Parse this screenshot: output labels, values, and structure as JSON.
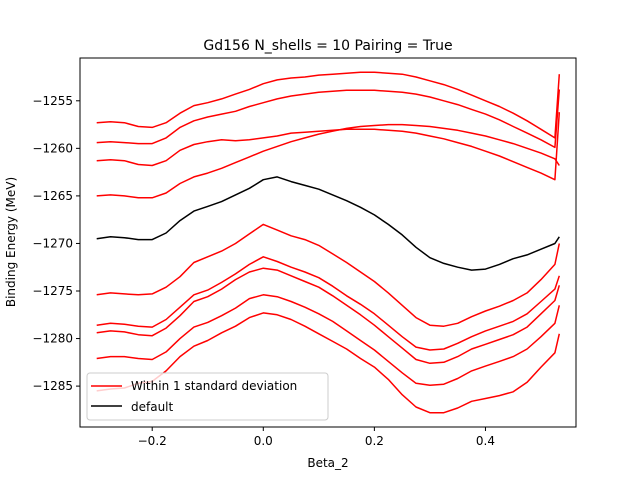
{
  "chart_data": {
    "type": "line",
    "title": "Gd156 N_shells = 10 Pairing = True",
    "xlabel": "Beta_2",
    "ylabel": "Binding Energy (MeV)",
    "xlim": [
      -0.33,
      0.563
    ],
    "ylim": [
      -1289.3,
      -1250.5
    ],
    "xticks": [
      -0.2,
      0.0,
      0.2,
      0.4
    ],
    "xtick_labels": [
      "−0.2",
      "0.0",
      "0.2",
      "0.4"
    ],
    "yticks": [
      -1255,
      -1260,
      -1265,
      -1270,
      -1275,
      -1280,
      -1285
    ],
    "ytick_labels": [
      "−1255",
      "−1260",
      "−1265",
      "−1270",
      "−1275",
      "−1280",
      "−1285"
    ],
    "grid": false,
    "legend_position": "lower-left",
    "legend": [
      {
        "label": "Within 1 standard deviation",
        "color": "#ff0000"
      },
      {
        "label": "default",
        "color": "#000000"
      }
    ],
    "x": [
      -0.3,
      -0.275,
      -0.25,
      -0.225,
      -0.2,
      -0.175,
      -0.15,
      -0.125,
      -0.1,
      -0.075,
      -0.05,
      -0.025,
      0.0,
      0.025,
      0.05,
      0.075,
      0.1,
      0.125,
      0.15,
      0.175,
      0.2,
      0.225,
      0.25,
      0.275,
      0.3,
      0.325,
      0.35,
      0.375,
      0.4,
      0.425,
      0.45,
      0.475,
      0.5,
      0.525,
      0.533
    ],
    "series": [
      {
        "color": "#ff0000",
        "values": [
          -1257.3,
          -1257.2,
          -1257.3,
          -1257.7,
          -1257.8,
          -1257.3,
          -1256.3,
          -1255.5,
          -1255.2,
          -1254.8,
          -1254.3,
          -1253.8,
          -1253.2,
          -1252.8,
          -1252.6,
          -1252.5,
          -1252.3,
          -1252.2,
          -1252.1,
          -1252.0,
          -1252.0,
          -1252.1,
          -1252.2,
          -1252.5,
          -1252.9,
          -1253.3,
          -1253.8,
          -1254.4,
          -1255.0,
          -1255.6,
          -1256.3,
          -1257.1,
          -1258.0,
          -1258.9,
          -1252.2
        ]
      },
      {
        "color": "#ff0000",
        "values": [
          -1259.4,
          -1259.3,
          -1259.4,
          -1259.5,
          -1259.5,
          -1258.9,
          -1257.8,
          -1257.1,
          -1256.7,
          -1256.4,
          -1256.1,
          -1255.6,
          -1255.2,
          -1254.8,
          -1254.5,
          -1254.3,
          -1254.1,
          -1254.0,
          -1253.9,
          -1253.9,
          -1253.9,
          -1254.0,
          -1254.1,
          -1254.3,
          -1254.6,
          -1255.0,
          -1255.4,
          -1255.9,
          -1256.4,
          -1257.0,
          -1257.7,
          -1258.4,
          -1259.1,
          -1259.9,
          -1253.8
        ]
      },
      {
        "color": "#ff0000",
        "values": [
          -1261.3,
          -1261.2,
          -1261.3,
          -1261.7,
          -1261.8,
          -1261.3,
          -1260.2,
          -1259.6,
          -1259.3,
          -1259.1,
          -1259.2,
          -1259.1,
          -1258.9,
          -1258.7,
          -1258.4,
          -1258.3,
          -1258.2,
          -1258.1,
          -1258.0,
          -1258.0,
          -1258.0,
          -1258.1,
          -1258.2,
          -1258.4,
          -1258.7,
          -1259.0,
          -1259.4,
          -1259.8,
          -1260.3,
          -1260.8,
          -1261.4,
          -1262.0,
          -1262.6,
          -1263.3,
          -1256.2
        ]
      },
      {
        "color": "#ff0000",
        "values": [
          -1265.0,
          -1264.9,
          -1265.0,
          -1265.2,
          -1265.2,
          -1264.7,
          -1263.7,
          -1263.0,
          -1262.6,
          -1262.1,
          -1261.5,
          -1260.9,
          -1260.3,
          -1259.8,
          -1259.3,
          -1258.9,
          -1258.5,
          -1258.2,
          -1257.9,
          -1257.7,
          -1257.6,
          -1257.5,
          -1257.5,
          -1257.6,
          -1257.7,
          -1257.9,
          -1258.1,
          -1258.4,
          -1258.7,
          -1259.1,
          -1259.5,
          -1260.0,
          -1260.5,
          -1261.1,
          -1261.8
        ]
      },
      {
        "color": "#000000",
        "values": [
          -1269.5,
          -1269.3,
          -1269.4,
          -1269.6,
          -1269.6,
          -1268.9,
          -1267.6,
          -1266.6,
          -1266.1,
          -1265.6,
          -1264.9,
          -1264.2,
          -1263.3,
          -1263.0,
          -1263.5,
          -1263.9,
          -1264.3,
          -1264.9,
          -1265.5,
          -1266.2,
          -1267.0,
          -1268.0,
          -1269.1,
          -1270.4,
          -1271.5,
          -1272.1,
          -1272.5,
          -1272.8,
          -1272.7,
          -1272.2,
          -1271.6,
          -1271.2,
          -1270.6,
          -1270.0,
          -1269.3
        ]
      },
      {
        "color": "#ff0000",
        "values": [
          -1275.4,
          -1275.2,
          -1275.3,
          -1275.4,
          -1275.3,
          -1274.6,
          -1273.5,
          -1272.0,
          -1271.4,
          -1270.8,
          -1270.0,
          -1269.0,
          -1268.0,
          -1268.6,
          -1269.2,
          -1269.6,
          -1270.2,
          -1271.1,
          -1272.0,
          -1273.0,
          -1274.0,
          -1275.2,
          -1276.5,
          -1277.8,
          -1278.6,
          -1278.7,
          -1278.4,
          -1277.7,
          -1277.1,
          -1276.6,
          -1276.0,
          -1275.2,
          -1273.8,
          -1272.2,
          -1270.0
        ]
      },
      {
        "color": "#ff0000",
        "values": [
          -1278.6,
          -1278.4,
          -1278.5,
          -1278.7,
          -1278.8,
          -1278.0,
          -1276.7,
          -1275.4,
          -1274.9,
          -1274.1,
          -1273.2,
          -1272.2,
          -1271.4,
          -1271.9,
          -1272.5,
          -1273.0,
          -1273.6,
          -1274.5,
          -1275.5,
          -1276.4,
          -1277.4,
          -1278.6,
          -1279.8,
          -1280.9,
          -1281.2,
          -1281.1,
          -1280.5,
          -1279.8,
          -1279.2,
          -1278.7,
          -1278.2,
          -1277.4,
          -1276.1,
          -1274.8,
          -1273.4
        ]
      },
      {
        "color": "#ff0000",
        "values": [
          -1279.4,
          -1279.2,
          -1279.3,
          -1279.6,
          -1279.7,
          -1278.9,
          -1277.6,
          -1276.1,
          -1275.6,
          -1274.8,
          -1273.8,
          -1273.0,
          -1272.6,
          -1272.8,
          -1273.4,
          -1274.0,
          -1274.6,
          -1275.5,
          -1276.5,
          -1277.5,
          -1278.6,
          -1279.8,
          -1281.0,
          -1282.2,
          -1282.6,
          -1282.5,
          -1281.9,
          -1281.1,
          -1280.6,
          -1280.1,
          -1279.6,
          -1278.8,
          -1277.4,
          -1276.0,
          -1274.4
        ]
      },
      {
        "color": "#ff0000",
        "values": [
          -1282.1,
          -1281.9,
          -1281.9,
          -1282.1,
          -1282.2,
          -1281.4,
          -1280.0,
          -1278.8,
          -1278.3,
          -1277.6,
          -1276.8,
          -1275.8,
          -1275.4,
          -1275.6,
          -1276.1,
          -1276.7,
          -1277.4,
          -1278.2,
          -1279.2,
          -1280.2,
          -1281.2,
          -1282.4,
          -1283.6,
          -1284.7,
          -1284.9,
          -1284.8,
          -1284.2,
          -1283.4,
          -1282.9,
          -1282.4,
          -1281.9,
          -1281.1,
          -1279.8,
          -1278.4,
          -1276.5
        ]
      },
      {
        "color": "#ff0000",
        "values": [
          -1285.5,
          -1285.3,
          -1285.2,
          -1284.7,
          -1284.5,
          -1283.4,
          -1281.9,
          -1280.8,
          -1280.2,
          -1279.4,
          -1278.7,
          -1277.8,
          -1277.3,
          -1277.5,
          -1278.0,
          -1278.7,
          -1279.5,
          -1280.3,
          -1281.1,
          -1282.1,
          -1283.0,
          -1284.3,
          -1285.9,
          -1287.2,
          -1287.8,
          -1287.8,
          -1287.3,
          -1286.6,
          -1286.3,
          -1286.0,
          -1285.6,
          -1284.6,
          -1283.0,
          -1281.5,
          -1279.5
        ]
      }
    ]
  }
}
